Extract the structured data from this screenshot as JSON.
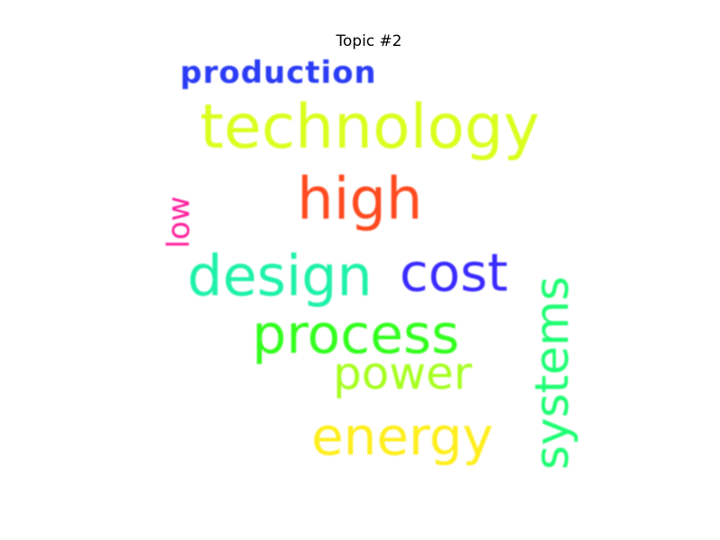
{
  "title": "Topic #2",
  "words": [
    {
      "text": "production",
      "color": "#2b3cf5",
      "orientation": "horizontal"
    },
    {
      "text": "technology",
      "color": "#d9ff1f",
      "orientation": "horizontal"
    },
    {
      "text": "high",
      "color": "#ff4a1f",
      "orientation": "horizontal"
    },
    {
      "text": "low",
      "color": "#ff1f9c",
      "orientation": "vertical"
    },
    {
      "text": "design",
      "color": "#1ff2a8",
      "orientation": "horizontal"
    },
    {
      "text": "cost",
      "color": "#3a2bff",
      "orientation": "horizontal"
    },
    {
      "text": "process",
      "color": "#33ff1f",
      "orientation": "horizontal"
    },
    {
      "text": "power",
      "color": "#a6ff1f",
      "orientation": "horizontal"
    },
    {
      "text": "systems",
      "color": "#1fff73",
      "orientation": "vertical"
    },
    {
      "text": "energy",
      "color": "#ffee1f",
      "orientation": "horizontal"
    }
  ]
}
